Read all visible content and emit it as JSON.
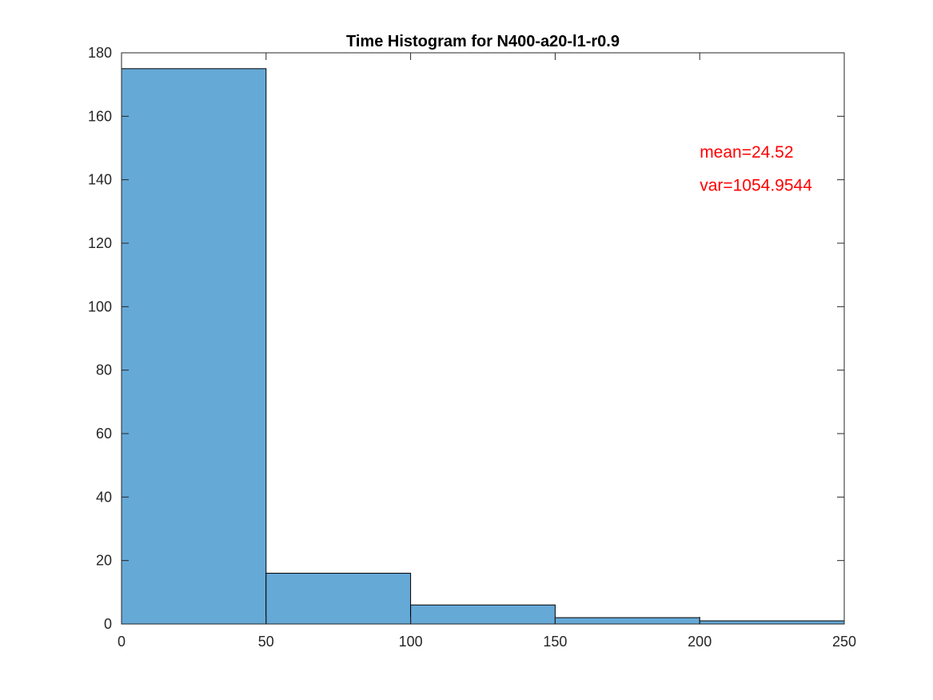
{
  "chart_data": {
    "type": "bar",
    "title": "Time Histogram for N400-a20-l1-r0.9",
    "xlabel": "",
    "ylabel": "",
    "bins": [
      {
        "x0": 0,
        "x1": 50,
        "count": 175
      },
      {
        "x0": 50,
        "x1": 100,
        "count": 16
      },
      {
        "x0": 100,
        "x1": 150,
        "count": 6
      },
      {
        "x0": 150,
        "x1": 200,
        "count": 2
      },
      {
        "x0": 200,
        "x1": 250,
        "count": 1
      }
    ],
    "xlim": [
      0,
      250
    ],
    "ylim": [
      0,
      180
    ],
    "xticks": [
      0,
      50,
      100,
      150,
      200,
      250
    ],
    "yticks": [
      0,
      20,
      40,
      60,
      80,
      100,
      120,
      140,
      160,
      180
    ],
    "grid": false,
    "bar_color": "#65a9d7",
    "bar_edge_color": "#000000",
    "annotations": [
      {
        "text": "mean=24.52",
        "x": 200,
        "y": 147,
        "color": "#ff0000"
      },
      {
        "text": "var=1054.9544",
        "x": 200,
        "y": 136.5,
        "color": "#ff0000"
      }
    ]
  }
}
